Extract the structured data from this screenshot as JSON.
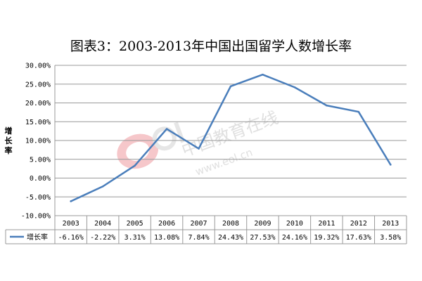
{
  "title": "图表3：2003-2013年中国出国留学人数增长率",
  "watermark": {
    "text": "中国教育在线",
    "subtext": "www.eol.cn",
    "logo": "eol"
  },
  "chart_data": {
    "type": "line",
    "title": "图表3：2003-2013年中国出国留学人数增长率",
    "xlabel": "",
    "ylabel": "增长率",
    "categories": [
      "2003",
      "2004",
      "2005",
      "2006",
      "2007",
      "2008",
      "2009",
      "2010",
      "2011",
      "2012",
      "2013"
    ],
    "series": [
      {
        "name": "增长率",
        "values": [
          -6.16,
          -2.22,
          3.31,
          13.08,
          7.84,
          24.43,
          27.53,
          24.16,
          19.32,
          17.63,
          3.58
        ],
        "labels": [
          "-6.16%",
          "-2.22%",
          "3.31%",
          "13.08%",
          "7.84%",
          "24.43%",
          "27.53%",
          "24.16%",
          "19.32%",
          "17.63%",
          "3.58%"
        ],
        "color": "#4a7ebb"
      }
    ],
    "yticks": [
      "30.00%",
      "25.00%",
      "20.00%",
      "15.00%",
      "10.00%",
      "5.00%",
      "0.00%",
      "-5.00%",
      "-10.00%"
    ],
    "ylim": [
      -10,
      30
    ],
    "grid": true,
    "legend": "data-table-bottom"
  }
}
